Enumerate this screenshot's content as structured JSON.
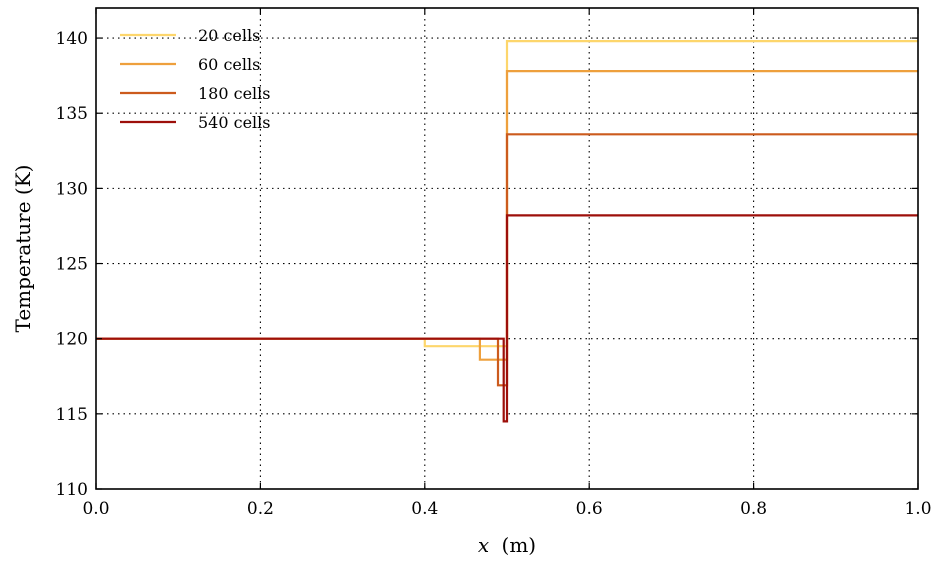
{
  "chart_data": {
    "type": "line",
    "title": "",
    "xlabel_italic": "x",
    "xlabel_unit": "(m)",
    "ylabel": "Temperature (K)",
    "xlim": [
      0.0,
      1.0
    ],
    "ylim": [
      110,
      142
    ],
    "xticks": [
      0.0,
      0.2,
      0.4,
      0.6,
      0.8,
      1.0
    ],
    "xtick_labels": [
      "0.0",
      "0.2",
      "0.4",
      "0.6",
      "0.8",
      "1.0"
    ],
    "yticks": [
      110,
      115,
      120,
      125,
      130,
      135,
      140
    ],
    "ytick_labels": [
      "110",
      "115",
      "120",
      "125",
      "130",
      "135",
      "140"
    ],
    "grid": true,
    "legend_position": "top-left",
    "series": [
      {
        "name": "20 cells",
        "color": "#fdd66c",
        "x": [
          0.0,
          0.4,
          0.4,
          0.5,
          0.5,
          1.0
        ],
        "y": [
          120.0,
          120.0,
          119.5,
          119.5,
          139.8,
          139.8
        ]
      },
      {
        "name": "60 cells",
        "color": "#eea03d",
        "x": [
          0.0,
          0.467,
          0.467,
          0.5,
          0.5,
          1.0
        ],
        "y": [
          120.0,
          120.0,
          118.6,
          118.6,
          137.8,
          137.8
        ]
      },
      {
        "name": "180 cells",
        "color": "#cc5b1d",
        "x": [
          0.0,
          0.489,
          0.489,
          0.5,
          0.5,
          1.0
        ],
        "y": [
          120.0,
          120.0,
          116.9,
          116.9,
          133.6,
          133.6
        ]
      },
      {
        "name": "540 cells",
        "color": "#9d0f0a",
        "x": [
          0.0,
          0.496,
          0.496,
          0.5,
          0.5,
          1.0
        ],
        "y": [
          120.0,
          120.0,
          114.5,
          114.5,
          128.2,
          128.2
        ]
      }
    ]
  }
}
